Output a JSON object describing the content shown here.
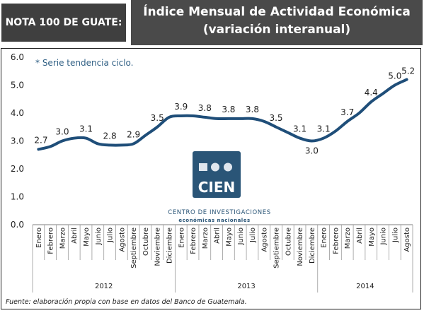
{
  "header": {
    "badge": "NOTA 100 DE GUATE:",
    "title_line1": "Índice Mensual de Actividad Económica",
    "title_line2": "(variación interanual)"
  },
  "note": "* Serie tendencia ciclo.",
  "logo": {
    "mark": "CIEN",
    "line1": "CENTRO DE INVESTIGACIONES",
    "line2": "económicas nacionales"
  },
  "source": "Fuente: elaboración propia con base en datos del Banco de Guatemala.",
  "colors": {
    "line": "#1f4e79",
    "logo_bg": "#2a5577",
    "badge_bg": "#3f3f3f",
    "header_bg": "#4a4a4a"
  },
  "chart_data": {
    "type": "line",
    "xlabel": "",
    "ylabel": "",
    "ylim": [
      0,
      6
    ],
    "yticks": [
      "0.0",
      "1.0",
      "2.0",
      "3.0",
      "4.0",
      "5.0",
      "6.0"
    ],
    "grid": false,
    "years": [
      {
        "label": "2012",
        "months": 12
      },
      {
        "label": "2013",
        "months": 12
      },
      {
        "label": "2014",
        "months": 8
      }
    ],
    "categories": [
      "Enero",
      "Febrero",
      "Marzo",
      "Abril",
      "Mayo",
      "Junio",
      "Julio",
      "Agosto",
      "Septiembre",
      "Octubre",
      "Noviembre",
      "Diciembre",
      "Enero",
      "Febrero",
      "Marzo",
      "Abril",
      "Mayo",
      "Junio",
      "Julio",
      "Agosto",
      "Septiembre",
      "Octubre",
      "Noviembre",
      "Diciembre",
      "Enero",
      "Febrero",
      "Marzo",
      "Abril",
      "Mayo",
      "Junio",
      "Julio",
      "Agosto"
    ],
    "series": [
      {
        "values": [
          2.7,
          2.8,
          3.0,
          3.1,
          3.1,
          2.9,
          2.85,
          2.85,
          2.9,
          3.2,
          3.5,
          3.85,
          3.9,
          3.9,
          3.85,
          3.8,
          3.8,
          3.8,
          3.8,
          3.7,
          3.5,
          3.3,
          3.1,
          3.0,
          3.1,
          3.35,
          3.7,
          4.0,
          4.4,
          4.7,
          5.0,
          5.2
        ]
      }
    ],
    "data_labels": [
      {
        "index": 0,
        "text": "2.7"
      },
      {
        "index": 2,
        "text": "3.0"
      },
      {
        "index": 4,
        "text": "3.1"
      },
      {
        "index": 6,
        "text": "2.8"
      },
      {
        "index": 8,
        "text": "2.9"
      },
      {
        "index": 10,
        "text": "3.5"
      },
      {
        "index": 12,
        "text": "3.9"
      },
      {
        "index": 14,
        "text": "3.8"
      },
      {
        "index": 16,
        "text": "3.8"
      },
      {
        "index": 18,
        "text": "3.8"
      },
      {
        "index": 20,
        "text": "3.5"
      },
      {
        "index": 22,
        "text": "3.1"
      },
      {
        "index": 23,
        "text": "3.0"
      },
      {
        "index": 24,
        "text": "3.1"
      },
      {
        "index": 26,
        "text": "3.7"
      },
      {
        "index": 28,
        "text": "4.4"
      },
      {
        "index": 30,
        "text": "5.0"
      },
      {
        "index": 31,
        "text": "5.2"
      }
    ]
  }
}
